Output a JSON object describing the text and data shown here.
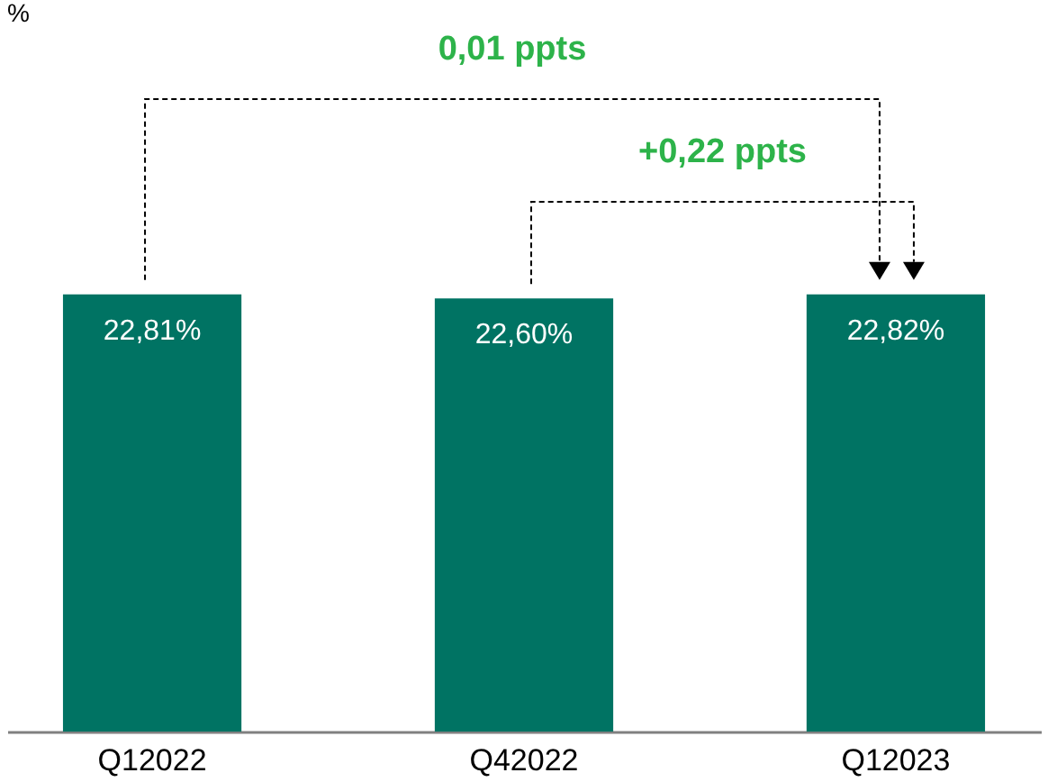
{
  "chart_data": {
    "type": "bar",
    "categories": [
      "Q12022",
      "Q42022",
      "Q12023"
    ],
    "values": [
      22.81,
      22.6,
      22.82
    ],
    "value_labels": [
      "22,81%",
      "22,60%",
      "22,82%"
    ],
    "color": "#007363",
    "annotations": [
      "%",
      "0,01 ppts",
      "+0,22 ppts"
    ],
    "grid": false
  }
}
